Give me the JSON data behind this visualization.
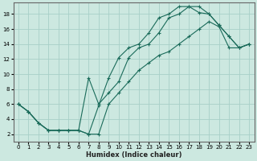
{
  "xlabel": "Humidex (Indice chaleur)",
  "bg_color": "#cce8e0",
  "grid_color": "#a8d0c8",
  "line_color": "#1a6b5a",
  "xlim": [
    -0.5,
    23.5
  ],
  "ylim": [
    1,
    19.5
  ],
  "xticks": [
    0,
    1,
    2,
    3,
    4,
    5,
    6,
    7,
    8,
    9,
    10,
    11,
    12,
    13,
    14,
    15,
    16,
    17,
    18,
    19,
    20,
    21,
    22,
    23
  ],
  "yticks": [
    2,
    4,
    6,
    8,
    10,
    12,
    14,
    16,
    18
  ],
  "curve1_x": [
    0,
    1,
    2,
    3,
    4,
    5,
    6,
    7,
    8,
    9,
    10,
    11,
    12,
    13,
    14,
    15,
    16,
    17,
    18,
    19,
    20,
    21,
    22,
    23
  ],
  "curve1_y": [
    6,
    5,
    3.5,
    2.5,
    2.5,
    2.5,
    2.5,
    2.0,
    5.8,
    9.5,
    12.2,
    13.5,
    14.0,
    15.5,
    17.5,
    18.0,
    19.0,
    19.0,
    18.2,
    18.0,
    16.5,
    15.0,
    13.5,
    14.0
  ],
  "curve2_x": [
    0,
    1,
    2,
    3,
    4,
    5,
    6,
    7,
    8,
    9,
    10,
    11,
    12,
    13,
    14,
    15,
    16,
    17,
    18,
    19,
    20,
    21,
    22,
    23
  ],
  "curve2_y": [
    6,
    5,
    3.5,
    2.5,
    2.5,
    2.5,
    2.5,
    9.5,
    6.0,
    7.5,
    9.0,
    12.2,
    13.5,
    14.0,
    15.5,
    17.5,
    18.0,
    19.0,
    19.0,
    18.0,
    16.5,
    15.0,
    13.5,
    14.0
  ],
  "curve3_x": [
    0,
    1,
    2,
    3,
    4,
    5,
    6,
    7,
    8,
    9,
    10,
    11,
    12,
    13,
    14,
    15,
    16,
    17,
    18,
    19,
    20,
    21,
    22,
    23
  ],
  "curve3_y": [
    6,
    5,
    3.5,
    2.5,
    2.5,
    2.5,
    2.5,
    2.0,
    2.0,
    6.0,
    7.5,
    9.0,
    10.5,
    11.5,
    12.5,
    13.0,
    14.0,
    15.0,
    16.0,
    17.0,
    16.3,
    13.5,
    13.5,
    14.0
  ]
}
